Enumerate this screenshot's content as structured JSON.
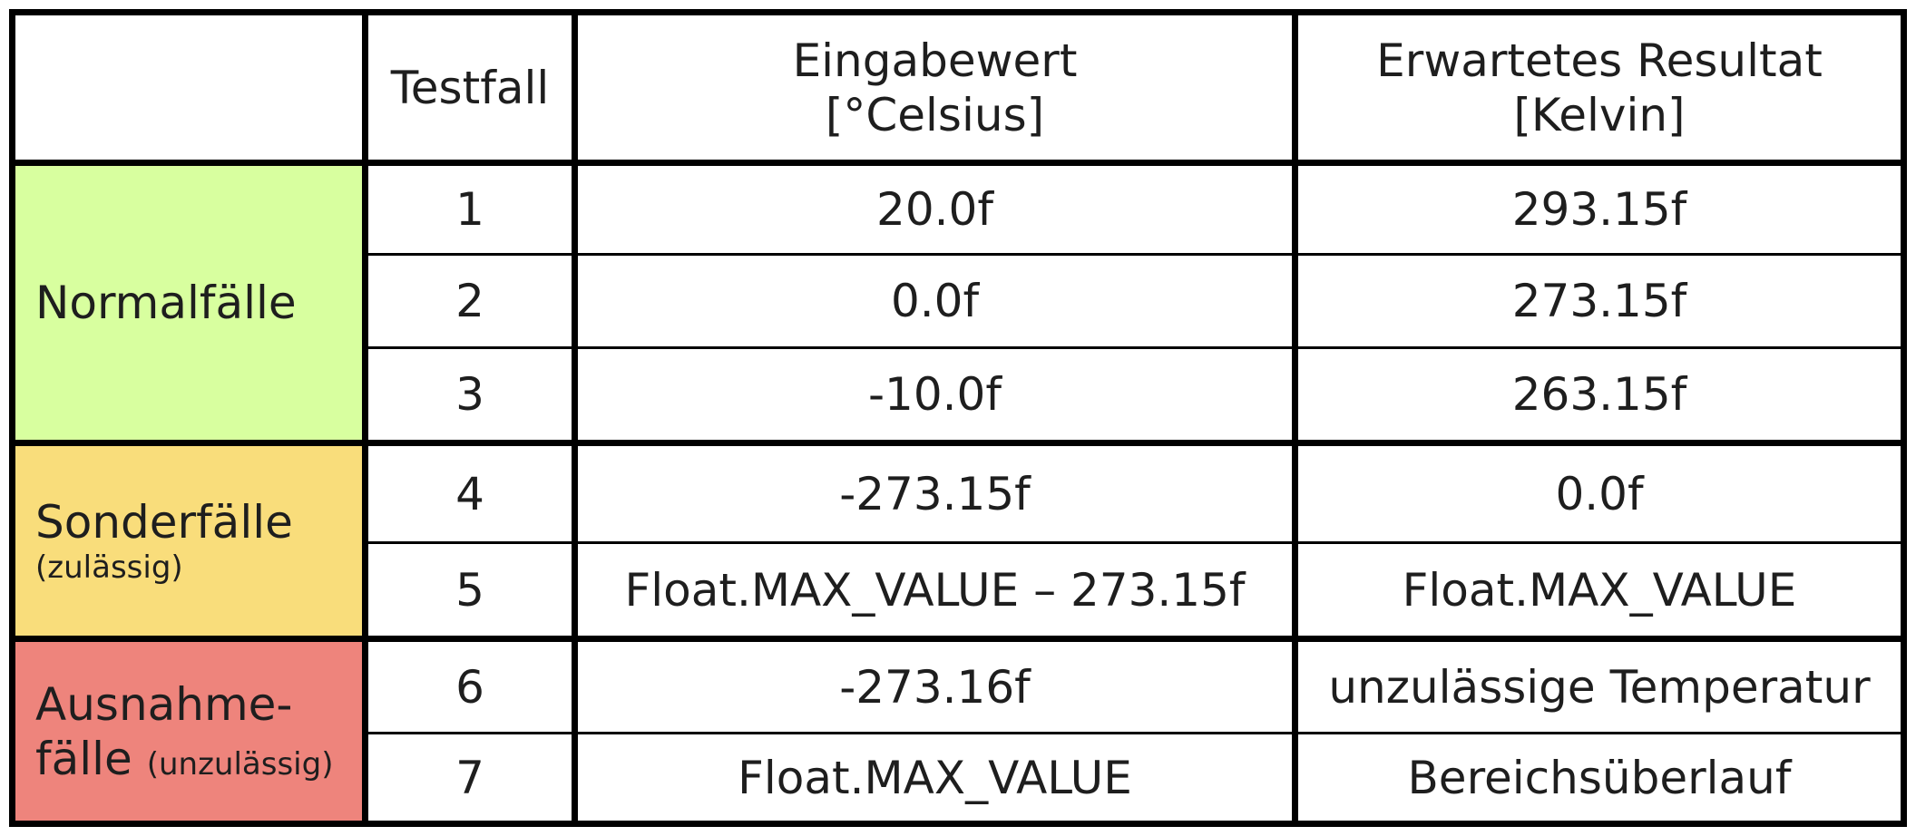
{
  "header": {
    "empty": "",
    "testfall": "Testfall",
    "eingabe_line1": "Eingabewert",
    "eingabe_line2": "[°Celsius]",
    "resultat_line1": "Erwartetes Resultat",
    "resultat_line2": "[Kelvin]"
  },
  "groups": {
    "normal": {
      "label": "Normalfälle",
      "color": "#d8ff9f"
    },
    "sonder": {
      "label": "Sonderfälle",
      "sub": "(zulässig)",
      "color": "#f9dd7b"
    },
    "ausnahme": {
      "label_line1": "Ausnahme-",
      "label_line2": "fälle",
      "sub": "(unzulässig)",
      "color": "#ee847c"
    }
  },
  "rows": [
    {
      "testfall": "1",
      "eingabe": "20.0f",
      "resultat": "293.15f"
    },
    {
      "testfall": "2",
      "eingabe": "0.0f",
      "resultat": "273.15f"
    },
    {
      "testfall": "3",
      "eingabe": "-10.0f",
      "resultat": "263.15f"
    },
    {
      "testfall": "4",
      "eingabe": "-273.15f",
      "resultat": "0.0f"
    },
    {
      "testfall": "5",
      "eingabe": "Float.MAX_VALUE – 273.15f",
      "resultat": "Float.MAX_VALUE"
    },
    {
      "testfall": "6",
      "eingabe": "-273.16f",
      "resultat": "unzulässige Temperatur"
    },
    {
      "testfall": "7",
      "eingabe": "Float.MAX_VALUE",
      "resultat": "Bereichsüberlauf"
    }
  ]
}
